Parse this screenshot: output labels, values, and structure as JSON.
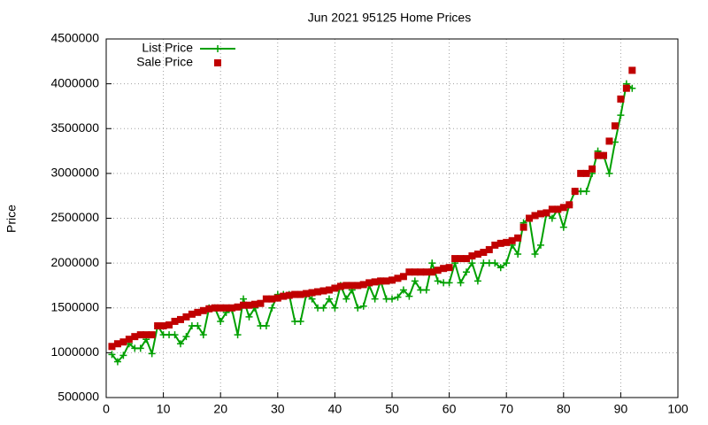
{
  "chart_data": {
    "type": "line",
    "title": "Jun 2021 95125 Home Prices",
    "y_label": "Price",
    "x": [
      1,
      2,
      3,
      4,
      5,
      6,
      7,
      8,
      9,
      10,
      11,
      12,
      13,
      14,
      15,
      16,
      17,
      18,
      19,
      20,
      21,
      22,
      23,
      24,
      25,
      26,
      27,
      28,
      29,
      30,
      31,
      32,
      33,
      34,
      35,
      36,
      37,
      38,
      39,
      40,
      41,
      42,
      43,
      44,
      45,
      46,
      47,
      48,
      49,
      50,
      51,
      52,
      53,
      54,
      55,
      56,
      57,
      58,
      59,
      60,
      61,
      62,
      63,
      64,
      65,
      66,
      67,
      68,
      69,
      70,
      71,
      72,
      73,
      74,
      75,
      76,
      77,
      78,
      79,
      80,
      81,
      82,
      83,
      84,
      85,
      86,
      87,
      88,
      89,
      90,
      91,
      92
    ],
    "series": [
      {
        "name": "List Price",
        "color": "#00a000",
        "style": "linespoints",
        "values": [
          980000,
          900000,
          970000,
          1100000,
          1050000,
          1050000,
          1150000,
          990000,
          1300000,
          1200000,
          1200000,
          1200000,
          1100000,
          1180000,
          1300000,
          1300000,
          1200000,
          1500000,
          1500000,
          1350000,
          1450000,
          1480000,
          1200000,
          1600000,
          1400000,
          1500000,
          1300000,
          1300000,
          1500000,
          1650000,
          1650000,
          1650000,
          1350000,
          1350000,
          1650000,
          1600000,
          1500000,
          1500000,
          1600000,
          1500000,
          1750000,
          1600000,
          1700000,
          1500000,
          1520000,
          1750000,
          1600000,
          1800000,
          1600000,
          1600000,
          1620000,
          1700000,
          1630000,
          1800000,
          1700000,
          1700000,
          2000000,
          1800000,
          1780000,
          1780000,
          2000000,
          1780000,
          1900000,
          2000000,
          1800000,
          2000000,
          2000000,
          2000000,
          1950000,
          2000000,
          2200000,
          2100000,
          2450000,
          2500000,
          2100000,
          2200000,
          2550000,
          2500000,
          2600000,
          2400000,
          2650000,
          2800000,
          2800000,
          2800000,
          3000000,
          3250000,
          3200000,
          3000000,
          3350000,
          3650000,
          4000000,
          3950000
        ]
      },
      {
        "name": "Sale Price",
        "color": "#c00000",
        "style": "points",
        "values": [
          1070000,
          1100000,
          1120000,
          1150000,
          1180000,
          1200000,
          1200000,
          1200000,
          1300000,
          1300000,
          1310000,
          1350000,
          1370000,
          1400000,
          1430000,
          1450000,
          1470000,
          1490000,
          1500000,
          1500000,
          1500000,
          1500000,
          1510000,
          1530000,
          1530000,
          1540000,
          1550000,
          1600000,
          1600000,
          1610000,
          1630000,
          1640000,
          1650000,
          1650000,
          1660000,
          1670000,
          1680000,
          1690000,
          1700000,
          1720000,
          1740000,
          1750000,
          1750000,
          1750000,
          1760000,
          1780000,
          1790000,
          1800000,
          1800000,
          1810000,
          1830000,
          1850000,
          1900000,
          1900000,
          1900000,
          1900000,
          1900000,
          1920000,
          1940000,
          1950000,
          2050000,
          2050000,
          2050000,
          2080000,
          2100000,
          2120000,
          2150000,
          2200000,
          2220000,
          2230000,
          2250000,
          2280000,
          2400000,
          2500000,
          2530000,
          2550000,
          2560000,
          2600000,
          2600000,
          2620000,
          2650000,
          2800000,
          3000000,
          3000000,
          3050000,
          3200000,
          3200000,
          3360000,
          3530000,
          3830000,
          3950000,
          4150000
        ]
      }
    ],
    "xlim": [
      0,
      100
    ],
    "xticks": [
      0,
      10,
      20,
      30,
      40,
      50,
      60,
      70,
      80,
      90,
      100
    ],
    "ylim": [
      500000,
      4500000
    ],
    "yticks": [
      500000,
      1000000,
      1500000,
      2000000,
      2500000,
      3000000,
      3500000,
      4000000,
      4500000
    ],
    "grid": true,
    "legend_position": "top-left"
  }
}
